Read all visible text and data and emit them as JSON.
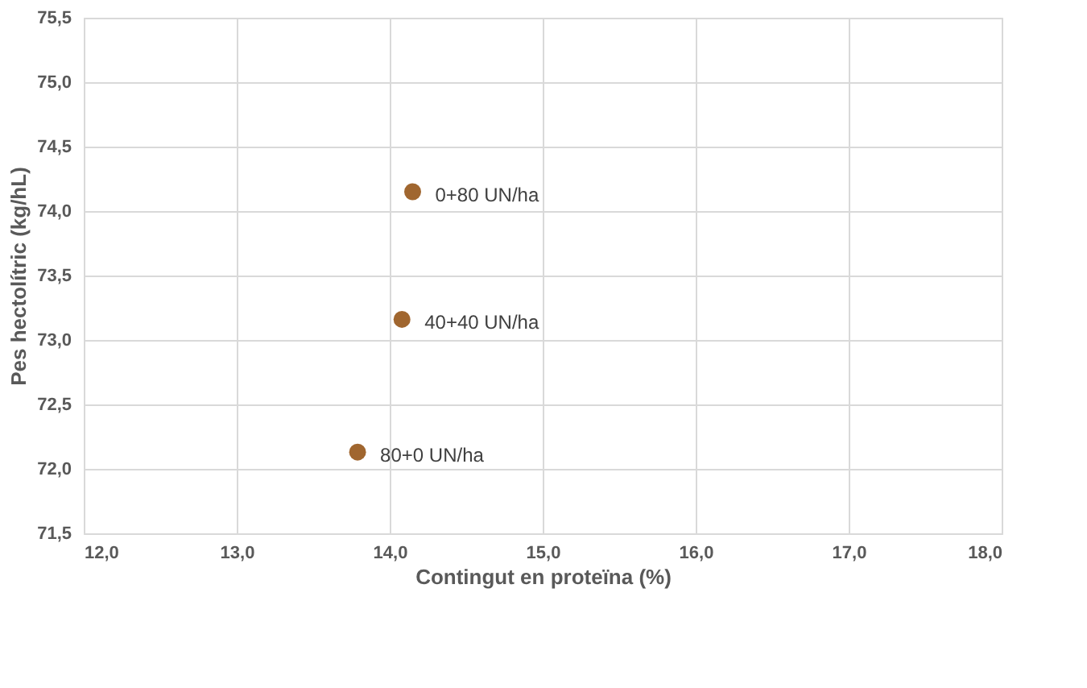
{
  "chart_data": {
    "type": "scatter",
    "xlabel": "Contingut en proteïna (%)",
    "ylabel": "Pes hectolítric (kg/hL)",
    "x": [
      14.15,
      14.08,
      13.79
    ],
    "series": [
      {
        "color": "#a0662f",
        "values": [
          74.15,
          73.16,
          72.13
        ]
      }
    ],
    "annotations": [
      {
        "text": "0+80 UN/ha",
        "x": 14.15,
        "y": 74.15
      },
      {
        "text": "40+40 UN/ha",
        "x": 14.08,
        "y": 73.16
      },
      {
        "text": "80+0 UN/ha",
        "x": 13.79,
        "y": 72.13
      }
    ],
    "xlim": [
      12,
      18
    ],
    "xticks": [
      {
        "value": 12,
        "label": "12,0"
      },
      {
        "value": 13,
        "label": "13,0"
      },
      {
        "value": 14,
        "label": "14,0"
      },
      {
        "value": 15,
        "label": "15,0"
      },
      {
        "value": 16,
        "label": "16,0"
      },
      {
        "value": 17,
        "label": "17,0"
      },
      {
        "value": 18,
        "label": "18,0"
      }
    ],
    "ylim": [
      71.5,
      75.5
    ],
    "yticks": [
      {
        "value": 71.5,
        "label": "71,5"
      },
      {
        "value": 72,
        "label": "72,0"
      },
      {
        "value": 72.5,
        "label": "72,5"
      },
      {
        "value": 73,
        "label": "73,0"
      },
      {
        "value": 73.5,
        "label": "73,5"
      },
      {
        "value": 74,
        "label": "74,0"
      },
      {
        "value": 74.5,
        "label": "74,5"
      },
      {
        "value": 75,
        "label": "75,0"
      },
      {
        "value": 75.5,
        "label": "75,5"
      }
    ],
    "grid": true,
    "marker": "circle"
  }
}
